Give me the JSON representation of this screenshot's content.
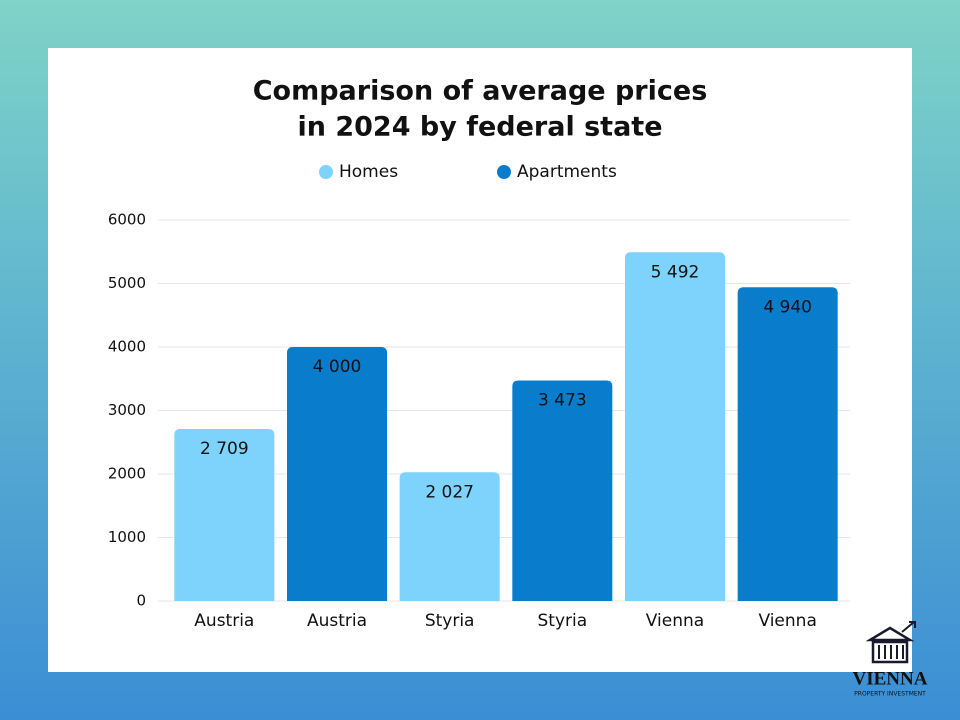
{
  "chart_data": {
    "type": "bar",
    "title": [
      "Comparison of average prices",
      "in 2024 by federal state"
    ],
    "categories": [
      "Austria",
      "Austria",
      "Styria",
      "Styria",
      "Vienna",
      "Vienna"
    ],
    "series": [
      {
        "name": "Homes",
        "color": "#7dd3fc",
        "values": [
          2709,
          null,
          2027,
          null,
          5492,
          null
        ],
        "value_labels": [
          "2 709",
          null,
          "2 027",
          null,
          "5 492",
          null
        ]
      },
      {
        "name": "Apartments",
        "color": "#0a7ccc",
        "values": [
          null,
          4000,
          null,
          3473,
          null,
          4940
        ],
        "value_labels": [
          null,
          "4 000",
          null,
          "3 473",
          null,
          "4 940"
        ]
      }
    ],
    "ylim": [
      0,
      6000
    ],
    "yticks": [
      0,
      1000,
      2000,
      3000,
      4000,
      5000,
      6000
    ],
    "grid": true,
    "legend": "top"
  },
  "logo": {
    "name": "VIENNA",
    "tagline": "PROPERTY INVESTMENT"
  }
}
